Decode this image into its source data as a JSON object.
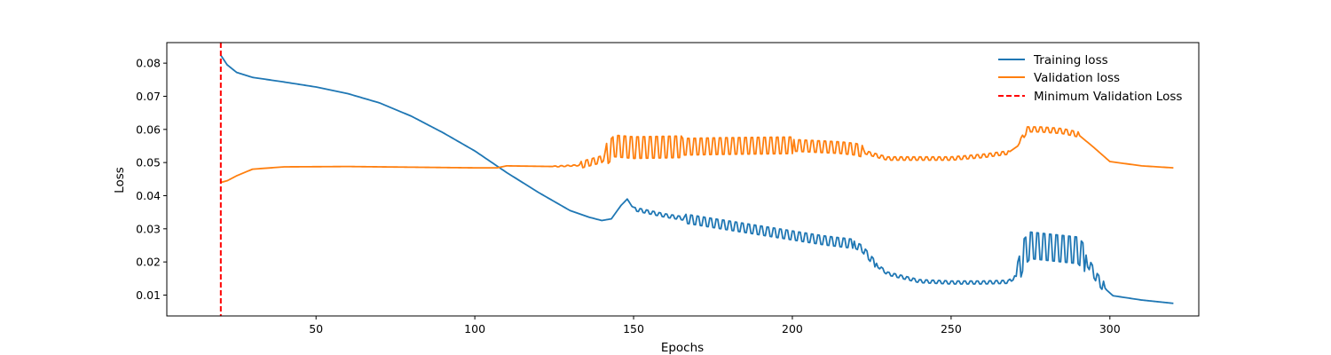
{
  "chart_data": {
    "type": "line",
    "xlabel": "Epochs",
    "ylabel": "Loss",
    "xlim": [
      3,
      328
    ],
    "ylim": [
      0.0037,
      0.0862
    ],
    "xticks": [
      50,
      100,
      150,
      200,
      250,
      300
    ],
    "yticks": [
      0.01,
      0.02,
      0.03,
      0.04,
      0.05,
      0.06,
      0.07,
      0.08
    ],
    "xtick_labels": [
      "50",
      "100",
      "150",
      "200",
      "250",
      "300"
    ],
    "ytick_labels": [
      "0.01",
      "0.02",
      "0.03",
      "0.04",
      "0.05",
      "0.06",
      "0.07",
      "0.08"
    ],
    "legend_position": "upper right",
    "grid": false,
    "epochs_start": 20,
    "epochs_end": 320,
    "series": [
      {
        "name": "Training loss",
        "color": "#1f77b4",
        "style": "solid",
        "anchors": [
          [
            20,
            0.0824
          ],
          [
            22,
            0.0795
          ],
          [
            25,
            0.0772
          ],
          [
            30,
            0.0757
          ],
          [
            40,
            0.0743
          ],
          [
            50,
            0.0728
          ],
          [
            60,
            0.0708
          ],
          [
            70,
            0.068
          ],
          [
            80,
            0.064
          ],
          [
            90,
            0.059
          ],
          [
            100,
            0.0535
          ],
          [
            110,
            0.047
          ],
          [
            120,
            0.041
          ],
          [
            130,
            0.0355
          ],
          [
            136,
            0.0335
          ],
          [
            140,
            0.0325
          ],
          [
            143,
            0.033
          ],
          [
            146,
            0.037
          ],
          [
            148,
            0.039
          ],
          [
            150,
            0.036
          ],
          [
            160,
            0.034
          ],
          [
            170,
            0.0325
          ],
          [
            180,
            0.031
          ],
          [
            190,
            0.0295
          ],
          [
            200,
            0.028
          ],
          [
            210,
            0.0265
          ],
          [
            219,
            0.0255
          ],
          [
            222,
            0.024
          ],
          [
            226,
            0.0195
          ],
          [
            230,
            0.0165
          ],
          [
            240,
            0.0142
          ],
          [
            250,
            0.0138
          ],
          [
            260,
            0.0138
          ],
          [
            268,
            0.014
          ],
          [
            271,
            0.016
          ],
          [
            273,
            0.023
          ],
          [
            275,
            0.025
          ],
          [
            285,
            0.024
          ],
          [
            290,
            0.0235
          ],
          [
            293,
            0.02
          ],
          [
            296,
            0.015
          ],
          [
            299,
            0.0115
          ],
          [
            301,
            0.0098
          ],
          [
            310,
            0.0085
          ],
          [
            320,
            0.0075
          ]
        ],
        "oscillations": [
          {
            "start": 150,
            "end": 166,
            "amplitude": 0.001,
            "period": 2
          },
          {
            "start": 166,
            "end": 219,
            "amplitude": 0.0027,
            "period": 2
          },
          {
            "start": 219,
            "end": 226,
            "amplitude": 0.002,
            "period": 2
          },
          {
            "start": 226,
            "end": 270,
            "amplitude": 0.0009,
            "period": 2
          },
          {
            "start": 271,
            "end": 292,
            "amplitude": 0.008,
            "period": 2
          },
          {
            "start": 292,
            "end": 298,
            "amplitude": 0.003,
            "period": 2
          }
        ]
      },
      {
        "name": "Validation loss",
        "color": "#ff7f0e",
        "style": "solid",
        "anchors": [
          [
            20,
            0.044
          ],
          [
            22,
            0.0445
          ],
          [
            25,
            0.046
          ],
          [
            30,
            0.048
          ],
          [
            40,
            0.0487
          ],
          [
            60,
            0.0488
          ],
          [
            80,
            0.0486
          ],
          [
            100,
            0.0484
          ],
          [
            107,
            0.0484
          ],
          [
            110,
            0.049
          ],
          [
            125,
            0.0488
          ],
          [
            133,
            0.0492
          ],
          [
            140,
            0.051
          ],
          [
            144,
            0.055
          ],
          [
            150,
            0.0545
          ],
          [
            180,
            0.055
          ],
          [
            200,
            0.0552
          ],
          [
            215,
            0.0545
          ],
          [
            220,
            0.054
          ],
          [
            225,
            0.0525
          ],
          [
            230,
            0.0512
          ],
          [
            250,
            0.0512
          ],
          [
            260,
            0.052
          ],
          [
            268,
            0.053
          ],
          [
            271,
            0.055
          ],
          [
            274,
            0.06
          ],
          [
            278,
            0.06
          ],
          [
            285,
            0.0595
          ],
          [
            290,
            0.0585
          ],
          [
            295,
            0.0545
          ],
          [
            300,
            0.0503
          ],
          [
            310,
            0.049
          ],
          [
            320,
            0.0484
          ]
        ],
        "oscillations": [
          {
            "start": 125,
            "end": 133,
            "amplitude": 0.0003,
            "period": 2
          },
          {
            "start": 133,
            "end": 141,
            "amplitude": 0.002,
            "period": 2
          },
          {
            "start": 141,
            "end": 165,
            "amplitude": 0.0065,
            "period": 2
          },
          {
            "start": 165,
            "end": 200,
            "amplitude": 0.005,
            "period": 2
          },
          {
            "start": 200,
            "end": 222,
            "amplitude": 0.0035,
            "period": 2
          },
          {
            "start": 222,
            "end": 268,
            "amplitude": 0.001,
            "period": 2
          },
          {
            "start": 272,
            "end": 290,
            "amplitude": 0.0015,
            "period": 2
          }
        ]
      },
      {
        "name": "Minimum Validation Loss",
        "color": "#ff0000",
        "style": "dashed",
        "x": 20
      }
    ]
  }
}
